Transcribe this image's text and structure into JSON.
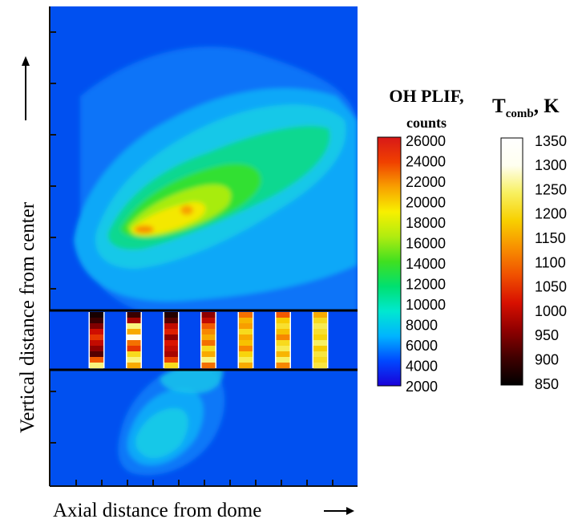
{
  "chart_data": {
    "type": "heatmap",
    "xlabel": "Axial distance from dome",
    "ylabel": "Vertical distance from center",
    "oh_colorbar": {
      "title_line1": "OH PLIF,",
      "title_line2": "counts",
      "ticks": [
        "26000",
        "24000",
        "22000",
        "20000",
        "18000",
        "16000",
        "14000",
        "12000",
        "10000",
        "8000",
        "6000",
        "4000",
        "2000"
      ],
      "min": 2000,
      "max": 26000,
      "colormap": [
        "#1a00d8",
        "#0048ff",
        "#00b4ff",
        "#00e8d0",
        "#00e070",
        "#40e020",
        "#b0ec10",
        "#f8f000",
        "#f8a000",
        "#f04000",
        "#d81818"
      ]
    },
    "temp_colorbar": {
      "title_main": "T",
      "title_sub": "comb",
      "title_unit": ", K",
      "ticks": [
        "1350",
        "1300",
        "1250",
        "1200",
        "1150",
        "1100",
        "1050",
        "1000",
        "950",
        "900",
        "850"
      ],
      "min": 850,
      "max": 1350,
      "colormap": [
        "#000000",
        "#400000",
        "#900000",
        "#d81000",
        "#f05000",
        "#f89000",
        "#f8d000",
        "#f8f060",
        "#fffff0",
        "#ffffff"
      ]
    },
    "temperature_columns": [
      {
        "temps": [
          870,
          900,
          950,
          1010,
          1050,
          1000,
          960,
          920,
          1080,
          1250
        ]
      },
      {
        "temps": [
          900,
          980,
          1250,
          1150,
          1300,
          1100,
          1050,
          1200,
          1250,
          1150
        ]
      },
      {
        "temps": [
          880,
          920,
          1000,
          1030,
          960,
          1020,
          1000,
          980,
          1060,
          1200
        ]
      },
      {
        "temps": [
          960,
          1000,
          1080,
          1120,
          1150,
          1100,
          1200,
          1150,
          1250,
          1100
        ]
      },
      {
        "temps": [
          1100,
          1160,
          1140,
          1200,
          1150,
          1170,
          1120,
          1190,
          1230,
          1150
        ]
      },
      {
        "temps": [
          1080,
          1180,
          1210,
          1170,
          1120,
          1200,
          1230,
          1160,
          1240,
          1120
        ]
      },
      {
        "temps": [
          1150,
          1200,
          1230,
          1210,
          1190,
          1240,
          1180,
          1220,
          1200,
          1220
        ]
      }
    ]
  }
}
